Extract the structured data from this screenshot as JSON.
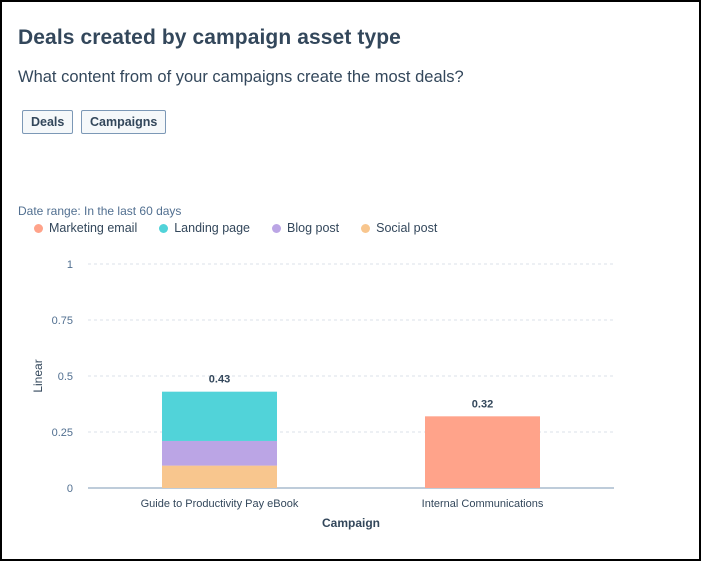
{
  "header": {
    "title": "Deals created by campaign asset type",
    "subtitle": "What content from of your campaigns create the most deals?"
  },
  "tags": [
    "Deals",
    "Campaigns"
  ],
  "date_range": "Date range: In the last 60 days",
  "colors": {
    "Marketing email": "#ffa38a",
    "Landing page": "#51d3d9",
    "Blog post": "#bba5e5",
    "Social post": "#f8c68e",
    "grid": "#dbe1e8",
    "axis": "#7c98b6"
  },
  "chart_data": {
    "type": "bar",
    "stacked": true,
    "categories": [
      "Guide to Productivity Pay eBook",
      "Internal Communications"
    ],
    "series": [
      {
        "name": "Marketing email",
        "values": [
          0,
          0.32
        ]
      },
      {
        "name": "Landing page",
        "values": [
          0.22,
          0
        ]
      },
      {
        "name": "Blog post",
        "values": [
          0.11,
          0
        ]
      },
      {
        "name": "Social post",
        "values": [
          0.1,
          0
        ]
      }
    ],
    "totals": [
      "0.43",
      "0.32"
    ],
    "xlabel": "Campaign",
    "ylabel": "Linear",
    "ylim": [
      0,
      1
    ],
    "yticks": [
      0,
      0.25,
      0.5,
      0.75,
      1
    ],
    "ytick_labels": [
      "0",
      "0.25",
      "0.5",
      "0.75",
      "1"
    ],
    "grid": true,
    "legend_position": "top-left"
  }
}
